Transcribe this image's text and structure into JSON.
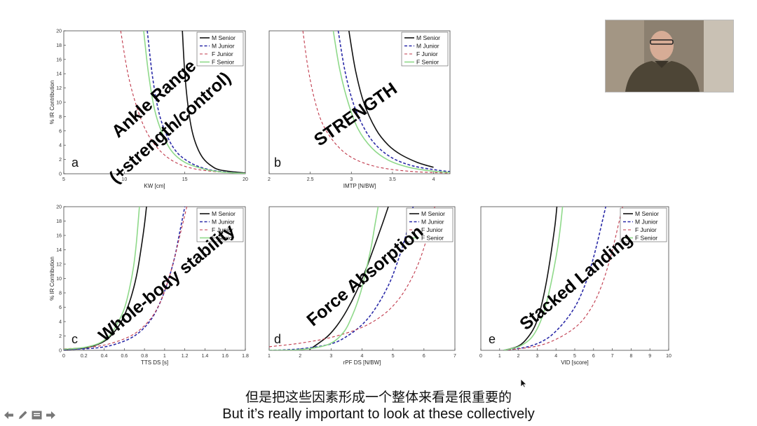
{
  "chart_data": [
    {
      "panel": "a",
      "type": "line",
      "xlabel": "KW [cm]",
      "ylabel": "% IR Contribution",
      "xlim": [
        5,
        20
      ],
      "ylim": [
        0,
        20
      ],
      "xticks": [
        "5",
        "10",
        "15",
        "20"
      ],
      "yticks": [
        "0",
        "2",
        "4",
        "6",
        "8",
        "10",
        "12",
        "14",
        "16",
        "18",
        "20"
      ],
      "overlay_text": [
        "Ankle Range",
        "(+strength/control)"
      ],
      "series": [
        {
          "name": "M Senior",
          "x": [
            14.8,
            15.0,
            15.3,
            15.6,
            16.0,
            16.5,
            17.2,
            18.0,
            20.0
          ],
          "y": [
            20,
            14,
            9,
            6,
            3.8,
            2.2,
            1.1,
            0.5,
            0.1
          ]
        },
        {
          "name": "M Junior",
          "x": [
            11.9,
            12.3,
            12.8,
            13.4,
            14.2,
            15.2,
            16.5,
            18.0,
            20.0
          ],
          "y": [
            20,
            14,
            9,
            5.8,
            3.3,
            1.8,
            0.8,
            0.3,
            0.05
          ]
        },
        {
          "name": "F Junior",
          "x": [
            9.7,
            10.3,
            11.0,
            11.8,
            12.8,
            14.0,
            15.5,
            17.5,
            20.0
          ],
          "y": [
            20,
            14,
            9.5,
            6,
            3.5,
            1.8,
            0.8,
            0.3,
            0.05
          ]
        },
        {
          "name": "F Senior",
          "x": [
            11.6,
            12.0,
            12.5,
            13.1,
            13.9,
            15.0,
            16.5,
            18.0,
            20.0
          ],
          "y": [
            20,
            14,
            9,
            5.8,
            3.2,
            1.6,
            0.7,
            0.25,
            0.05
          ]
        }
      ]
    },
    {
      "panel": "b",
      "type": "line",
      "xlabel": "IMTP [N/BW]",
      "ylabel": "",
      "xlim": [
        2,
        4.2
      ],
      "ylim": [
        0,
        20
      ],
      "xticks": [
        "2",
        "2.5",
        "3",
        "3.5",
        "4"
      ],
      "yticks": [],
      "overlay_text": [
        "STRENGTH"
      ],
      "series": [
        {
          "name": "M Senior",
          "x": [
            2.97,
            3.05,
            3.15,
            3.3,
            3.45,
            3.6,
            3.8,
            4.0
          ],
          "y": [
            20,
            14.5,
            10,
            6.2,
            4,
            2.7,
            1.6,
            0.9
          ]
        },
        {
          "name": "M Junior",
          "x": [
            2.84,
            2.92,
            3.02,
            3.15,
            3.3,
            3.5,
            3.75,
            4.05,
            4.2
          ],
          "y": [
            20,
            14.5,
            10,
            6.5,
            4,
            2.2,
            1.1,
            0.5,
            0.3
          ]
        },
        {
          "name": "F Junior",
          "x": [
            2.41,
            2.47,
            2.55,
            2.65,
            2.8,
            3.0,
            3.3,
            3.7,
            4.2
          ],
          "y": [
            20,
            15,
            10.5,
            7,
            4.3,
            2.3,
            1,
            0.35,
            0.1
          ]
        },
        {
          "name": "F Senior",
          "x": [
            2.78,
            2.86,
            2.96,
            3.08,
            3.25,
            3.45,
            3.7,
            4.0,
            4.2
          ],
          "y": [
            20,
            14.5,
            10,
            6.3,
            3.6,
            1.9,
            0.9,
            0.35,
            0.2
          ]
        }
      ]
    },
    {
      "panel": "c",
      "type": "line",
      "xlabel": "TTS DS [s]",
      "ylabel": "% IR Contribution",
      "xlim": [
        0,
        1.8
      ],
      "ylim": [
        0,
        20
      ],
      "xticks": [
        "0",
        "0.2",
        "0.4",
        "0.6",
        "0.8",
        "1",
        "1.2",
        "1.4",
        "1.6",
        "1.8"
      ],
      "yticks": [
        "0",
        "2",
        "4",
        "6",
        "8",
        "10",
        "12",
        "14",
        "16",
        "18",
        "20"
      ],
      "overlay_text": [
        "Whole-body stability"
      ],
      "series": [
        {
          "name": "M Senior",
          "x": [
            0,
            0.2,
            0.35,
            0.45,
            0.55,
            0.62,
            0.68,
            0.73,
            0.77,
            0.8,
            0.82
          ],
          "y": [
            0.1,
            0.3,
            0.9,
            1.8,
            3.5,
            5.5,
            8,
            11,
            14.5,
            17.5,
            20
          ]
        },
        {
          "name": "M Junior",
          "x": [
            0,
            0.3,
            0.5,
            0.7,
            0.85,
            0.95,
            1.03,
            1.1,
            1.15,
            1.2
          ],
          "y": [
            0.1,
            0.3,
            0.8,
            2,
            4,
            6.5,
            9.5,
            13,
            16.5,
            20
          ]
        },
        {
          "name": "F Junior",
          "x": [
            0,
            0.3,
            0.5,
            0.7,
            0.85,
            0.95,
            1.03,
            1.1,
            1.16,
            1.22
          ],
          "y": [
            0.2,
            0.5,
            1.1,
            2.3,
            4.2,
            6.5,
            9.5,
            13,
            16.5,
            20
          ]
        },
        {
          "name": "F Senior",
          "x": [
            0,
            0.2,
            0.35,
            0.45,
            0.53,
            0.6,
            0.65,
            0.69,
            0.72,
            0.75
          ],
          "y": [
            0.15,
            0.4,
            1,
            2,
            3.7,
            5.8,
            8.5,
            11.5,
            15,
            20
          ]
        }
      ]
    },
    {
      "panel": "d",
      "type": "line",
      "xlabel": "rPF DS [N/BW]",
      "ylabel": "",
      "xlim": [
        1,
        7
      ],
      "ylim": [
        0,
        20
      ],
      "xticks": [
        "1",
        "2",
        "3",
        "4",
        "5",
        "6",
        "7"
      ],
      "yticks": [],
      "overlay_text": [
        "Force Absorption"
      ],
      "series": [
        {
          "name": "M Senior",
          "x": [
            2.3,
            2.6,
            2.9,
            3.2,
            3.5,
            3.8,
            4.1,
            4.4,
            4.65,
            4.85
          ],
          "y": [
            0.1,
            1,
            2,
            3.5,
            5.5,
            8,
            11,
            14.5,
            17.5,
            20
          ]
        },
        {
          "name": "M Junior",
          "x": [
            1.0,
            2.0,
            3.0,
            3.6,
            4.1,
            4.5,
            4.9,
            5.2,
            5.45,
            5.65
          ],
          "y": [
            0,
            0.2,
            0.9,
            2.2,
            4,
            6.3,
            9.5,
            13,
            16.5,
            20
          ]
        },
        {
          "name": "F Junior",
          "x": [
            1.0,
            2.0,
            3.0,
            4.0,
            4.7,
            5.2,
            5.6,
            5.9,
            6.15,
            6.35
          ],
          "y": [
            0.5,
            1,
            1.8,
            3.2,
            5,
            7.2,
            10,
            13,
            16.5,
            20
          ]
        },
        {
          "name": "F Senior",
          "x": [
            1.0,
            2.0,
            2.9,
            3.4,
            3.7,
            3.95,
            4.15,
            4.3,
            4.42,
            4.52
          ],
          "y": [
            0,
            0.1,
            0.8,
            2.5,
            5,
            8,
            11.5,
            14.5,
            17.5,
            20
          ]
        }
      ]
    },
    {
      "panel": "e",
      "type": "line",
      "xlabel": "VID [score]",
      "ylabel": "",
      "xlim": [
        0,
        10
      ],
      "ylim": [
        0,
        20
      ],
      "xticks": [
        "0",
        "1",
        "2",
        "3",
        "4",
        "5",
        "6",
        "7",
        "8",
        "9",
        "10"
      ],
      "yticks": [],
      "overlay_text": [
        "Stacked Landing"
      ],
      "series": [
        {
          "name": "M Senior",
          "x": [
            1.2,
            2.0,
            2.5,
            2.9,
            3.2,
            3.45,
            3.65,
            3.82,
            3.95,
            4.05
          ],
          "y": [
            0,
            0.6,
            1.8,
            3.5,
            6,
            9,
            12,
            15,
            17.5,
            20
          ]
        },
        {
          "name": "M Junior",
          "x": [
            1.2,
            2.5,
            3.5,
            4.3,
            5.0,
            5.5,
            5.9,
            6.2,
            6.45,
            6.65
          ],
          "y": [
            0,
            0.5,
            1.6,
            3.5,
            6,
            8.8,
            12,
            15,
            17.8,
            20
          ]
        },
        {
          "name": "F Junior",
          "x": [
            1.2,
            3.0,
            4.2,
            5.2,
            5.9,
            6.4,
            6.8,
            7.1,
            7.35,
            7.55
          ],
          "y": [
            0,
            0.6,
            1.8,
            3.6,
            6,
            8.8,
            12,
            15,
            17.8,
            20
          ]
        },
        {
          "name": "F Senior",
          "x": [
            1.2,
            2.0,
            2.6,
            3.0,
            3.35,
            3.65,
            3.9,
            4.1,
            4.25,
            4.35
          ],
          "y": [
            0,
            0.5,
            1.5,
            3,
            5.3,
            8.3,
            11.5,
            14.5,
            17.5,
            20
          ]
        }
      ]
    }
  ],
  "series_styles": {
    "M Senior": {
      "color": "#111111",
      "dash": "",
      "width": 1.6
    },
    "M Junior": {
      "color": "#2b2ba8",
      "dash": "4,2.5",
      "width": 1.6
    },
    "F Junior": {
      "color": "#c0394b",
      "dash": "4,3",
      "width": 1.1
    },
    "F Senior": {
      "color": "#8fd98a",
      "dash": "",
      "width": 1.6
    }
  },
  "subtitles": {
    "chinese": "但是把这些因素形成一个整体来看是很重要的",
    "english": "But it’s really important to look at these collectively"
  },
  "toolbar_icons": [
    "previous-arrow-icon",
    "pen-icon",
    "menu-icon",
    "next-arrow-icon"
  ]
}
